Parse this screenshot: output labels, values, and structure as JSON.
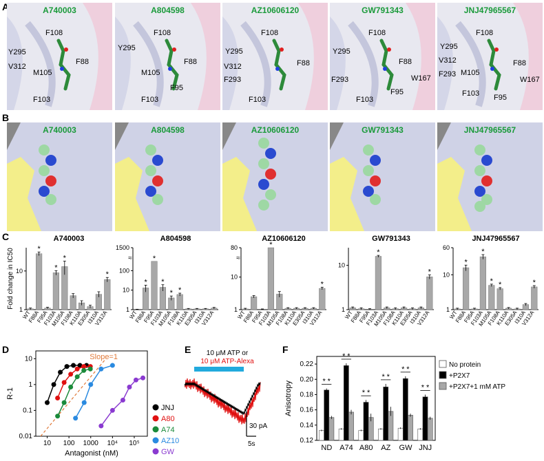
{
  "panel_letters": {
    "a": "A",
    "b": "B",
    "c": "C",
    "d": "D",
    "e": "E",
    "f": "F"
  },
  "ligands": [
    "A740003",
    "A804598",
    "AZ10606120",
    "GW791343",
    "JNJ47965567"
  ],
  "panelA_residues": [
    [
      "F108",
      "Y295",
      "V312",
      "M105",
      "F88",
      "F103"
    ],
    [
      "F108",
      "Y295",
      "M105",
      "F88",
      "F95",
      "F103"
    ],
    [
      "F108",
      "Y295",
      "V312",
      "F293",
      "F88",
      "F103"
    ],
    [
      "F108",
      "Y295",
      "F293",
      "F88",
      "W167",
      "F95",
      "F103"
    ],
    [
      "F108",
      "Y295",
      "V312",
      "F293",
      "M105",
      "F88",
      "W167",
      "F103",
      "F95"
    ]
  ],
  "colors": {
    "bar": "#a8a8a8",
    "ligand_green": "#1a9a3a",
    "surface": "#cfd2e6",
    "yellow": "#f3ee8a",
    "pink": "#f0c8d8",
    "black": "#000000",
    "red": "#e01010",
    "green_series": "#1a8a3a",
    "blue_series": "#2a8ae0",
    "purple_series": "#8a3ad0",
    "slope_line": "#e07a3a",
    "atp_bar": "#22aadd"
  },
  "chart_data": [
    {
      "id": "C1",
      "type": "bar",
      "title": "A740003",
      "ylabel": "Fold change in IC50",
      "scale": "log",
      "ylim": [
        1,
        40
      ],
      "yticks": [
        "1",
        "10"
      ],
      "categories": [
        "WT",
        "F88A",
        "F95A",
        "F103A",
        "M105A",
        "F108A",
        "K110A",
        "E305A",
        "I310A",
        "V312A"
      ],
      "values": [
        1.05,
        28,
        1.1,
        9,
        13,
        2.3,
        1.5,
        1.2,
        2.5,
        6
      ],
      "errors": [
        0.05,
        3,
        0.05,
        1.2,
        5,
        0.3,
        0.2,
        0.1,
        0.4,
        0.8
      ],
      "significant": [
        false,
        true,
        false,
        true,
        true,
        false,
        false,
        false,
        false,
        true
      ]
    },
    {
      "id": "C2",
      "type": "bar",
      "title": "A804598",
      "scale": "log-broken",
      "ylim": [
        1,
        1500
      ],
      "yticks": [
        "1",
        "10",
        "100",
        "1500"
      ],
      "categories": [
        "WT",
        "F88A",
        "F95A",
        "F103A",
        "M105A",
        "F108A",
        "K110A",
        "E305A",
        "I310A",
        "V312A"
      ],
      "values": [
        1,
        13,
        300,
        14,
        4,
        6,
        1.1,
        1.1,
        1.1,
        1.2
      ],
      "errors": [
        0.05,
        5,
        0,
        5,
        1,
        1,
        0.05,
        0.05,
        0.05,
        0.1
      ],
      "significant": [
        false,
        true,
        true,
        true,
        true,
        true,
        false,
        false,
        false,
        false
      ]
    },
    {
      "id": "C3",
      "type": "bar",
      "title": "AZ10606120",
      "scale": "log-broken",
      "ylim": [
        1,
        80
      ],
      "yticks": [
        "1",
        "10",
        "80"
      ],
      "categories": [
        "WT",
        "F88A",
        "F95A",
        "F103A",
        "M105A",
        "F108A",
        "K110A",
        "E305A",
        "I310A",
        "V312A"
      ],
      "values": [
        1.05,
        2.5,
        1.0,
        80,
        3,
        1.1,
        1.1,
        1.1,
        1.1,
        4.5
      ],
      "errors": [
        0.05,
        0.2,
        0.05,
        0,
        0.6,
        0.05,
        0.05,
        0.05,
        0.05,
        0.4
      ],
      "significant": [
        false,
        false,
        false,
        true,
        false,
        false,
        false,
        false,
        false,
        true
      ]
    },
    {
      "id": "C4",
      "type": "bar",
      "title": "GW791343",
      "scale": "log",
      "ylim": [
        1,
        25
      ],
      "yticks": [
        "1",
        "10"
      ],
      "categories": [
        "WT",
        "F88A",
        "F95A",
        "F103A",
        "M105A",
        "F108A",
        "K110A",
        "E305A",
        "I310A",
        "V312A"
      ],
      "values": [
        1.1,
        1.05,
        1.0,
        16,
        1.1,
        1.05,
        1.1,
        1.05,
        1.1,
        5.5
      ],
      "errors": [
        0.05,
        0.05,
        0.05,
        0.8,
        0.05,
        0.05,
        0.05,
        0.05,
        0.05,
        0.6
      ],
      "significant": [
        false,
        false,
        false,
        true,
        false,
        false,
        false,
        false,
        false,
        true
      ]
    },
    {
      "id": "C5",
      "type": "bar",
      "title": "JNJ47965567",
      "scale": "log",
      "ylim": [
        1,
        60
      ],
      "yticks": [
        "1",
        "10",
        "60"
      ],
      "categories": [
        "WT",
        "F88A",
        "F95A",
        "F103A",
        "M105A",
        "F108A",
        "K110A",
        "E305A",
        "I310A",
        "V312A"
      ],
      "values": [
        1.05,
        16,
        1.05,
        33,
        5,
        4,
        1.1,
        1.05,
        1.4,
        4.5
      ],
      "errors": [
        0.05,
        3,
        0.05,
        5,
        0.4,
        0.3,
        0.05,
        0.05,
        0.1,
        0.4
      ],
      "significant": [
        false,
        true,
        false,
        true,
        true,
        true,
        false,
        false,
        false,
        true
      ]
    },
    {
      "id": "D",
      "type": "scatter",
      "xlabel": "Antagonist (nM)",
      "ylabel": "R-1",
      "scale": "log-log",
      "xlim": [
        3,
        400000
      ],
      "ylim": [
        0.01,
        20
      ],
      "xticks": [
        "10",
        "100",
        "1000",
        "10⁴",
        "10⁵"
      ],
      "yticks": [
        "0.01",
        "0.1",
        "1",
        "10"
      ],
      "annotation": "Slope=1",
      "series": [
        {
          "name": "JNJ",
          "color": "#000000",
          "x": [
            10,
            20,
            40,
            80,
            160,
            320,
            640
          ],
          "y": [
            0.2,
            1,
            3,
            5,
            5.5,
            5.5,
            5.5
          ]
        },
        {
          "name": "A80",
          "color": "#e01010",
          "x": [
            30,
            60,
            120,
            240,
            480,
            960
          ],
          "y": [
            0.3,
            1.2,
            2.5,
            4,
            5,
            5
          ]
        },
        {
          "name": "A74",
          "color": "#1a8a3a",
          "x": [
            30,
            60,
            120,
            240,
            480,
            960
          ],
          "y": [
            0.06,
            0.2,
            0.8,
            2,
            3.5,
            4
          ]
        },
        {
          "name": "AZ10",
          "color": "#2a8ae0",
          "x": [
            200,
            500,
            1000,
            3000,
            10000
          ],
          "y": [
            0.05,
            0.2,
            1,
            4,
            5.5
          ]
        },
        {
          "name": "GW",
          "color": "#8a3ad0",
          "x": [
            3000,
            10000,
            30000,
            60000,
            120000,
            250000
          ],
          "y": [
            0.025,
            0.1,
            0.25,
            0.8,
            1.5,
            1.8
          ]
        }
      ]
    },
    {
      "id": "E",
      "type": "line",
      "annotation_lines": [
        "10 μM ATP or",
        "10 μM ATP-Alexa"
      ],
      "scalebar_y": "30 pA",
      "scalebar_x": "5s",
      "series": [
        {
          "name": "10 μM ATP",
          "color": "#000000"
        },
        {
          "name": "10 μM ATP-Alexa",
          "color": "#e01010"
        }
      ]
    },
    {
      "id": "F",
      "type": "bar",
      "ylabel": "Anisotropy",
      "ylim": [
        0.12,
        0.23
      ],
      "yticks": [
        "0.12",
        "0.14",
        "0.16",
        "0.18",
        "0.20",
        "0.22"
      ],
      "categories": [
        "ND",
        "A74",
        "A80",
        "AZ",
        "GW",
        "JNJ"
      ],
      "series": [
        {
          "name": "No protein",
          "color": "#ffffff",
          "values": [
            0.133,
            0.135,
            0.133,
            0.135,
            0.136,
            0.135
          ],
          "errors": [
            0.001,
            0.001,
            0.001,
            0.001,
            0.001,
            0.001
          ]
        },
        {
          "name": "+P2X7",
          "color": "#000000",
          "values": [
            0.186,
            0.218,
            0.17,
            0.19,
            0.201,
            0.177
          ],
          "errors": [
            0.002,
            0.003,
            0.003,
            0.004,
            0.003,
            0.003
          ]
        },
        {
          "name": "+P2X7+1 mM ATP",
          "color": "#a8a8a8",
          "values": [
            0.15,
            0.157,
            0.15,
            0.158,
            0.153,
            0.149
          ],
          "errors": [
            0.002,
            0.003,
            0.005,
            0.006,
            0.002,
            0.002
          ]
        }
      ]
    }
  ]
}
